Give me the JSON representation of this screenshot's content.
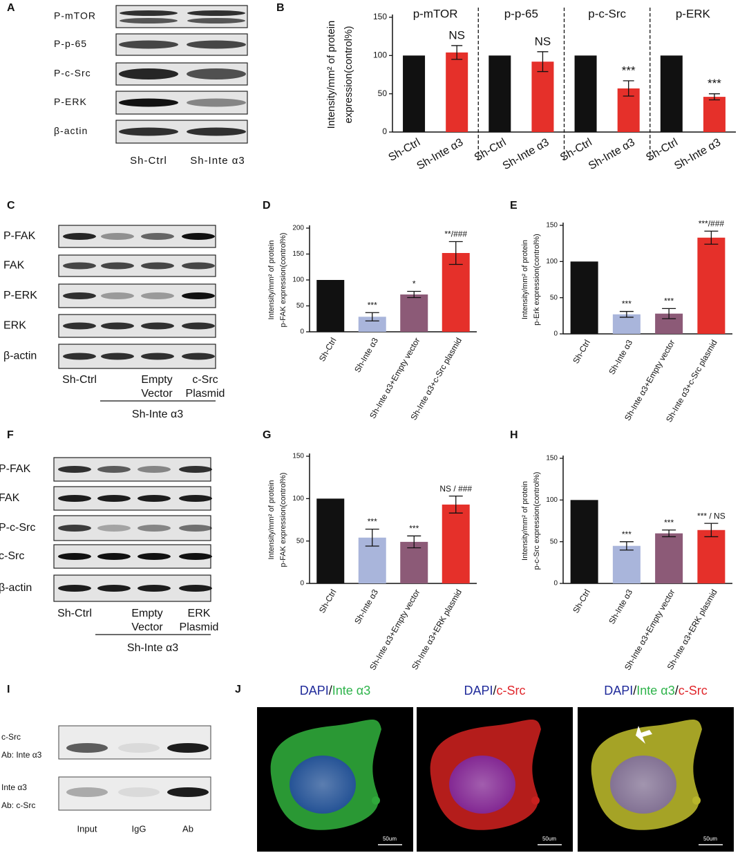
{
  "panel_labels": [
    "A",
    "B",
    "C",
    "D",
    "E",
    "F",
    "G",
    "H",
    "I",
    "J"
  ],
  "blot_a": {
    "rows": [
      "P-mTOR",
      "P-p-65",
      "P-c-Src",
      "P-ERK",
      "β-actin"
    ],
    "lanes": [
      "Sh-Ctrl",
      "Sh-Inte α3"
    ]
  },
  "blot_c": {
    "rows": [
      "P-FAK",
      "FAK",
      "P-ERK",
      "ERK",
      "β-actin"
    ],
    "lanes": [
      [
        "Sh-Ctrl"
      ],
      [
        "Empty",
        "Vector"
      ],
      [
        "c-Src",
        "Plasmid"
      ]
    ],
    "group": "Sh-Inte α3"
  },
  "blot_f": {
    "rows": [
      "P-FAK",
      "FAK",
      "P-c-Src",
      "c-Src",
      "β-actin"
    ],
    "lanes": [
      [
        "Sh-Ctrl"
      ],
      [
        "Empty",
        "Vector"
      ],
      [
        "ERK",
        "Plasmid"
      ]
    ],
    "group": "Sh-Inte α3"
  },
  "blot_i": {
    "rows": [
      "c-Src",
      "Ab: Inte α3",
      "Inte α3",
      "Ab: c-Src"
    ],
    "lanes": [
      "Input",
      "IgG",
      "Ab"
    ]
  },
  "images_j": {
    "titles": [
      [
        {
          "text": "DAPI",
          "color": "#1f2a9a"
        },
        {
          "text": "/",
          "color": "#111111"
        },
        {
          "text": "Inte α3",
          "color": "#2db34a"
        }
      ],
      [
        {
          "text": "DAPI",
          "color": "#1f2a9a"
        },
        {
          "text": "/",
          "color": "#111111"
        },
        {
          "text": "c-Src",
          "color": "#e0262b"
        }
      ],
      [
        {
          "text": "DAPI",
          "color": "#1f2a9a"
        },
        {
          "text": "/",
          "color": "#111111"
        },
        {
          "text": "Inte α3",
          "color": "#2db34a"
        },
        {
          "text": "/",
          "color": "#111111"
        },
        {
          "text": "c-Src",
          "color": "#e0262b"
        }
      ]
    ],
    "scale_bar": "50um"
  },
  "chart_data": [
    {
      "type": "bar",
      "ylabel": [
        "Intensity/mm² of  protein",
        "expression(control%)"
      ],
      "groups": [
        "p-mTOR",
        "p-p-65",
        "p-c-Src",
        "p-ERK"
      ],
      "categories": [
        "Sh-Ctrl",
        "Sh-Inte α3",
        "Sh-Ctrl",
        "Sh-Inte α3",
        "Sh-Ctrl",
        "Sh-Inte α3",
        "Sh-Ctrl",
        "Sh-Inte α3"
      ],
      "values": [
        100,
        104,
        100,
        92,
        100,
        57,
        100,
        46
      ],
      "errors": [
        null,
        9,
        null,
        13,
        null,
        10,
        null,
        4
      ],
      "annotations": [
        null,
        "NS",
        null,
        "NS",
        null,
        "***",
        null,
        "***"
      ],
      "colors": [
        "#111111",
        "#e5302a",
        "#111111",
        "#e5302a",
        "#111111",
        "#e5302a",
        "#111111",
        "#e5302a"
      ],
      "ylim": [
        0,
        150
      ],
      "yticks": [
        0,
        50,
        100,
        150
      ]
    },
    {
      "type": "bar",
      "ylabel": [
        "Intensity/mm² of protein",
        "p-FAK expression(control%)"
      ],
      "categories": [
        "Sh-Ctrl",
        "Sh-Inte α3",
        "Sh-Inte α3+Empty vector",
        "Sh-Inte α3+c-Src plasmid"
      ],
      "values": [
        100,
        29,
        72,
        152
      ],
      "errors": [
        null,
        8,
        6,
        22
      ],
      "annotations": [
        null,
        "***",
        "*",
        "**/###"
      ],
      "colors": [
        "#111111",
        "#a9b5db",
        "#8c5a77",
        "#e5302a"
      ],
      "ylim": [
        0,
        200
      ],
      "yticks": [
        0,
        50,
        100,
        150,
        200
      ]
    },
    {
      "type": "bar",
      "ylabel": [
        "Intensity/mm² of protein",
        "p-Erk expression(control%)"
      ],
      "categories": [
        "Sh-Ctrl",
        "Sh-Inte α3",
        "Sh-Inte α3+Empty vector",
        "Sh-Inte α3+c-Src plasmid"
      ],
      "values": [
        100,
        27,
        28,
        133
      ],
      "errors": [
        null,
        4,
        7,
        9
      ],
      "annotations": [
        null,
        "***",
        "***",
        "***/###"
      ],
      "colors": [
        "#111111",
        "#a9b5db",
        "#8c5a77",
        "#e5302a"
      ],
      "ylim": [
        0,
        150
      ],
      "yticks": [
        0,
        50,
        100,
        150
      ]
    },
    {
      "type": "bar",
      "ylabel": [
        "Intensity/mm² of protein",
        "p-FAK expression(control%)"
      ],
      "categories": [
        "Sh-Ctrl",
        "Sh-Inte α3",
        "Sh-Inte α3+Empty vector",
        "Sh-Inte α3+ERK plasmid"
      ],
      "values": [
        100,
        54,
        49,
        93
      ],
      "errors": [
        null,
        10,
        7,
        10
      ],
      "annotations": [
        null,
        "***",
        "***",
        "NS / ###"
      ],
      "colors": [
        "#111111",
        "#a9b5db",
        "#8c5a77",
        "#e5302a"
      ],
      "ylim": [
        0,
        150
      ],
      "yticks": [
        0,
        50,
        100,
        150
      ]
    },
    {
      "type": "bar",
      "ylabel": [
        "Intensity/mm² of protein",
        "p-c-Src expression(control%)"
      ],
      "categories": [
        "Sh-Ctrl",
        "Sh-Inte α3",
        "Sh-Inte α3+Empty vector",
        "Sh-Inte α3+ERK plasmid"
      ],
      "values": [
        100,
        45,
        60,
        64
      ],
      "errors": [
        null,
        5,
        4,
        8
      ],
      "annotations": [
        null,
        "***",
        "***",
        "*** / NS"
      ],
      "colors": [
        "#111111",
        "#a9b5db",
        "#8c5a77",
        "#e5302a"
      ],
      "ylim": [
        0,
        150
      ],
      "yticks": [
        0,
        50,
        100,
        150
      ]
    }
  ]
}
